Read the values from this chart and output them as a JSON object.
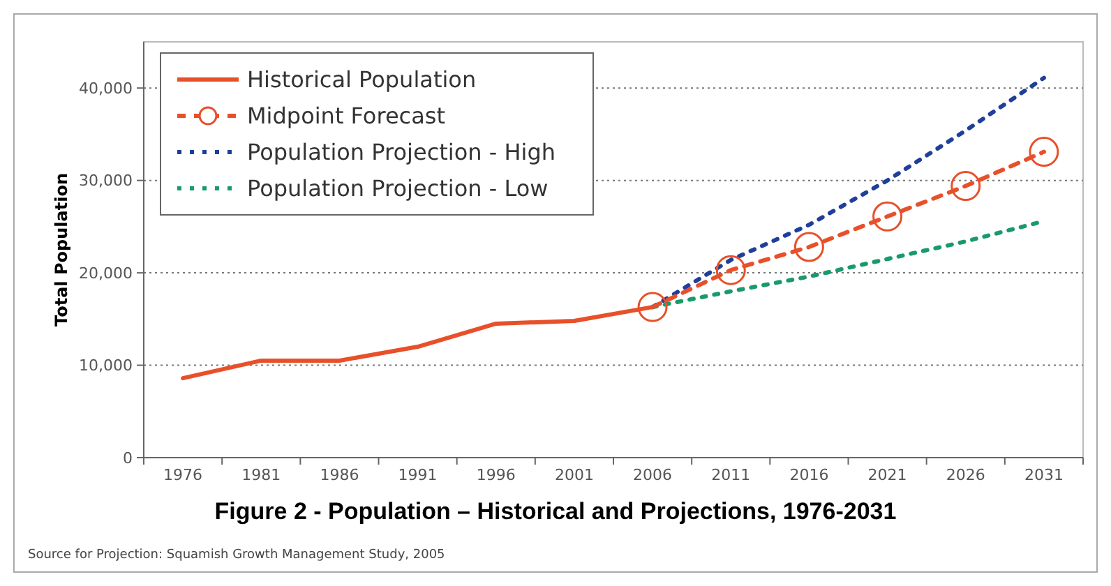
{
  "chart_data": {
    "type": "line",
    "title": "Figure 2 - Population – Historical and Projections, 1976-2031",
    "ylabel": "Total Population",
    "categories": [
      "1976",
      "1981",
      "1986",
      "1991",
      "1996",
      "2001",
      "2006",
      "2011",
      "2016",
      "2021",
      "2026",
      "2031"
    ],
    "series": [
      {
        "name": "Historical Population",
        "color": "#e8502a",
        "line_style": "solid",
        "marker": "none",
        "values": [
          8600,
          10500,
          10500,
          12000,
          14500,
          14800,
          16300,
          null,
          null,
          null,
          null,
          null
        ]
      },
      {
        "name": "Midpoint Forecast",
        "color": "#e8502a",
        "line_style": "dashed",
        "marker": "circle",
        "values": [
          null,
          null,
          null,
          null,
          null,
          null,
          16300,
          20300,
          22800,
          26100,
          29400,
          33100
        ]
      },
      {
        "name": "Population Projection - High",
        "color": "#1f3f9a",
        "line_style": "dotted",
        "marker": "none",
        "values": [
          null,
          null,
          null,
          null,
          null,
          null,
          16300,
          21400,
          25200,
          30000,
          35400,
          41100
        ]
      },
      {
        "name": "Population Projection - Low",
        "color": "#1a9a6a",
        "line_style": "dotted",
        "marker": "none",
        "values": [
          null,
          null,
          null,
          null,
          null,
          null,
          16300,
          18000,
          19600,
          21500,
          23400,
          25600
        ]
      }
    ],
    "ylim": [
      0,
      45000
    ],
    "yticks": [
      {
        "value": 0,
        "label": "0"
      },
      {
        "value": 10000,
        "label": "10,000"
      },
      {
        "value": 20000,
        "label": "20,000"
      },
      {
        "value": 30000,
        "label": "30,000"
      },
      {
        "value": 40000,
        "label": "40,000"
      }
    ],
    "grid": "y",
    "legend": "top left",
    "annotations": [
      "Source for Projection: Squamish Growth Management Study, 2005"
    ]
  }
}
